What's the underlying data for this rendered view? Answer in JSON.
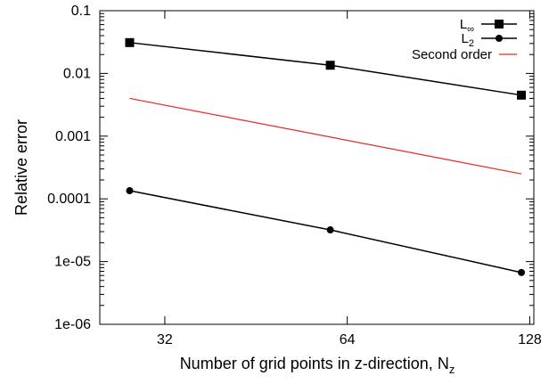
{
  "chart_data": {
    "type": "line",
    "xlabel_main": "Number of grid points in z-direction, N",
    "xlabel_sub": "z",
    "ylabel": "Relative error",
    "xscale": "log",
    "yscale": "log",
    "xlim": [
      25,
      130
    ],
    "ylim": [
      1e-06,
      0.1
    ],
    "x_ticks": [
      {
        "value": 32,
        "label": "32"
      },
      {
        "value": 64,
        "label": "64"
      },
      {
        "value": 128,
        "label": "128"
      }
    ],
    "y_ticks": [
      {
        "value": 1e-06,
        "label": "1e-06"
      },
      {
        "value": 1e-05,
        "label": "1e-05"
      },
      {
        "value": 0.0001,
        "label": "0.0001"
      },
      {
        "value": 0.001,
        "label": "0.001"
      },
      {
        "value": 0.01,
        "label": "0.01"
      },
      {
        "value": 0.1,
        "label": "0.1"
      }
    ],
    "grid": false,
    "legend_position": "top-right",
    "series": [
      {
        "name": "L",
        "name_sub": "∞",
        "color": "#000000",
        "marker": "square",
        "x": [
          28,
          60,
          124
        ],
        "y": [
          0.031,
          0.0135,
          0.0045
        ]
      },
      {
        "name": "L",
        "name_sub": "2",
        "color": "#000000",
        "marker": "circle",
        "x": [
          28,
          60,
          124
        ],
        "y": [
          0.000135,
          3.2e-05,
          6.7e-06
        ]
      },
      {
        "name": "Second order",
        "color": "#e8281e",
        "marker": "none",
        "x": [
          28,
          124
        ],
        "y": [
          0.004,
          0.00025
        ]
      }
    ]
  }
}
